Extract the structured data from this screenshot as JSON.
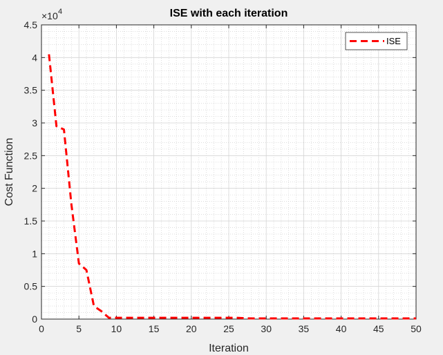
{
  "chart_data": {
    "type": "line",
    "title": "ISE with each iteration",
    "xlabel": "Iteration",
    "ylabel": "Cost Function",
    "xlim": [
      0,
      50
    ],
    "ylim": [
      0,
      4.5
    ],
    "y_exponent_label": "×10",
    "y_exponent_power": "4",
    "x_ticks": [
      "0",
      "5",
      "10",
      "15",
      "20",
      "25",
      "30",
      "35",
      "40",
      "45",
      "50"
    ],
    "y_ticks": [
      "0",
      "0.5",
      "1",
      "1.5",
      "2",
      "2.5",
      "3",
      "3.5",
      "4",
      "4.5"
    ],
    "grid": true,
    "minor_grid": true,
    "legend_position": "top-right",
    "series": [
      {
        "name": "ISE",
        "color": "#ff0000",
        "line_style": "dashed",
        "x": [
          1,
          2,
          3,
          4,
          5,
          6,
          7,
          8,
          9,
          10,
          11,
          12,
          13,
          14,
          15,
          16,
          17,
          18,
          19,
          20,
          21,
          22,
          23,
          24,
          25,
          26,
          27,
          28,
          29,
          30,
          31,
          32,
          33,
          34,
          35,
          36,
          37,
          38,
          39,
          40,
          41,
          42,
          43,
          44,
          45,
          46,
          47,
          48,
          49,
          50
        ],
        "y": [
          4.05,
          2.95,
          2.9,
          1.75,
          0.85,
          0.75,
          0.2,
          0.12,
          0.02,
          0.02,
          0.02,
          0.02,
          0.02,
          0.02,
          0.02,
          0.02,
          0.02,
          0.02,
          0.02,
          0.02,
          0.02,
          0.02,
          0.02,
          0.02,
          0.02,
          0.02,
          0.015,
          0.01,
          0.01,
          0.01,
          0.01,
          0.01,
          0.01,
          0.01,
          0.01,
          0.01,
          0.01,
          0.01,
          0.01,
          0.01,
          0.01,
          0.01,
          0.01,
          0.01,
          0.01,
          0.01,
          0.01,
          0.01,
          0.01,
          0.01
        ]
      }
    ]
  }
}
